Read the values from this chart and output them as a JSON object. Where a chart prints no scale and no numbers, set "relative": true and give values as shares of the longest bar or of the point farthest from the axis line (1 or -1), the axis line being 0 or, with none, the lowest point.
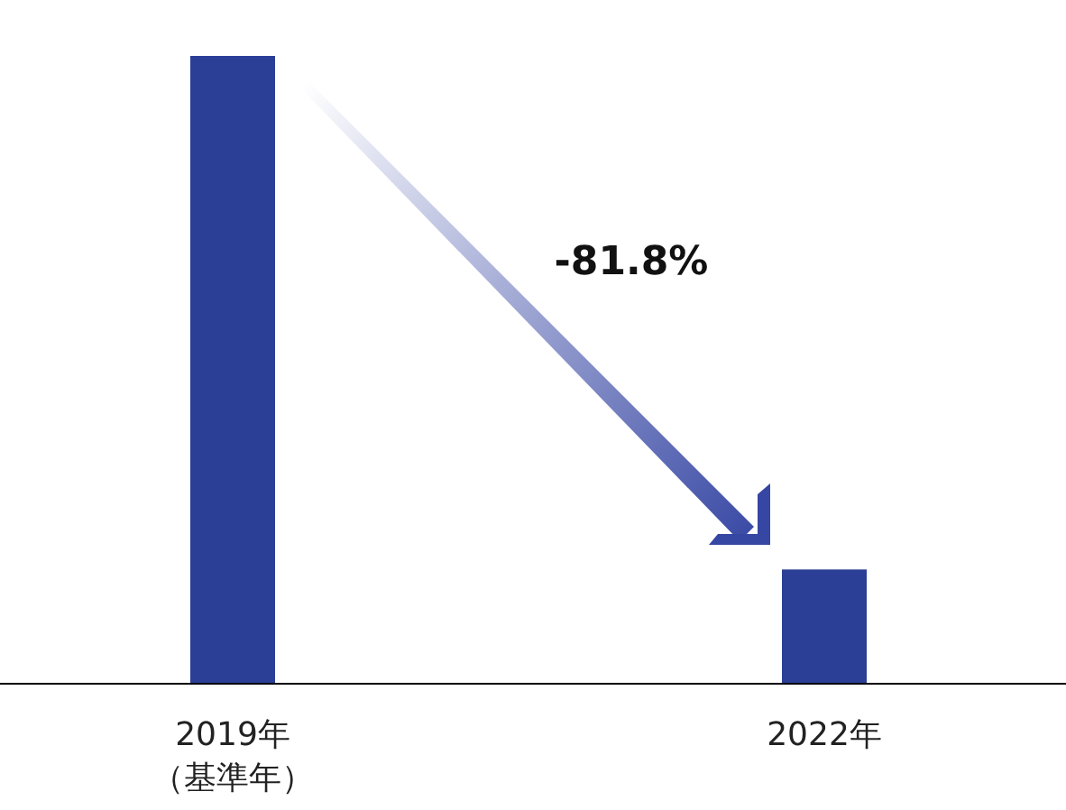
{
  "chart_data": {
    "type": "bar",
    "categories": [
      "2019年（基準年）",
      "2022年"
    ],
    "values": [
      1,
      0.182
    ],
    "color": "#2b3f96",
    "relative": true,
    "annotations": [
      "-81.8%"
    ]
  }
}
